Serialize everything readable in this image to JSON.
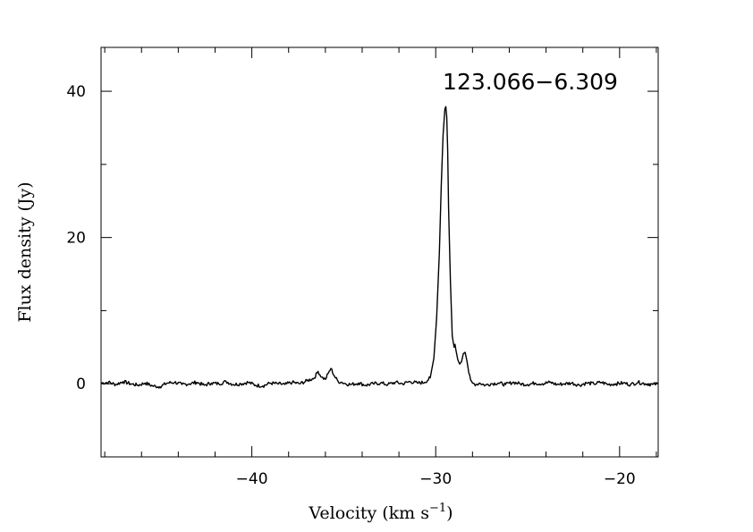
{
  "chart_data": {
    "type": "line",
    "title": "123.066−6.309",
    "xlabel": "Velocity (km s",
    "xlabel_sup": "−1",
    "xlabel_close": ")",
    "ylabel": "Flux density (Jy)",
    "xlim": [
      -48.2,
      -17.9
    ],
    "ylim": [
      -10,
      46
    ],
    "x_ticks_major": [
      -40,
      -30,
      -20
    ],
    "x_tick_labels": [
      "−40",
      "−30",
      "−20"
    ],
    "y_ticks_major": [
      0,
      20,
      40
    ],
    "y_tick_labels": [
      "0",
      "20",
      "40"
    ],
    "grid": false,
    "line_color": "#000000",
    "series": [
      {
        "x": [
          -48.2,
          -47.8,
          -47.4,
          -47.0,
          -46.6,
          -46.2,
          -45.8,
          -45.4,
          -45.0,
          -44.6,
          -44.2,
          -43.8,
          -43.4,
          -43.0,
          -42.6,
          -42.2,
          -41.8,
          -41.4,
          -41.0,
          -40.6,
          -40.2,
          -39.8,
          -39.4,
          -39.0,
          -38.6,
          -38.2,
          -37.8,
          -37.4,
          -37.0,
          -36.6,
          -36.4,
          -36.2,
          -36.0,
          -35.85,
          -35.7,
          -35.5,
          -35.3,
          -35.1,
          -34.9,
          -34.6,
          -34.2,
          -33.8,
          -33.4,
          -33.0,
          -32.6,
          -32.2,
          -31.8,
          -31.4,
          -31.0,
          -30.6,
          -30.3,
          -30.1,
          -29.95,
          -29.8,
          -29.7,
          -29.6,
          -29.5,
          -29.45,
          -29.4,
          -29.35,
          -29.3,
          -29.2,
          -29.1,
          -29.0,
          -28.95,
          -28.9,
          -28.8,
          -28.7,
          -28.6,
          -28.5,
          -28.4,
          -28.3,
          -28.2,
          -28.1,
          -28.0,
          -27.9,
          -27.8,
          -27.6,
          -27.3,
          -27.0,
          -26.6,
          -26.2,
          -25.8,
          -25.4,
          -25.0,
          -24.6,
          -24.2,
          -23.8,
          -23.4,
          -23.0,
          -22.6,
          -22.2,
          -21.8,
          -21.4,
          -21.0,
          -20.6,
          -20.2,
          -19.8,
          -19.4,
          -19.0,
          -18.6,
          -18.2,
          -17.9
        ],
        "values": [
          0.1,
          0.2,
          -0.1,
          0.3,
          0.0,
          -0.2,
          0.1,
          -0.3,
          -0.4,
          0.1,
          0.2,
          -0.1,
          0.0,
          0.2,
          -0.2,
          0.1,
          0.0,
          0.3,
          -0.1,
          0.0,
          0.2,
          -0.2,
          -0.3,
          0.1,
          0.0,
          -0.1,
          0.2,
          0.0,
          0.4,
          0.8,
          1.7,
          0.9,
          0.6,
          1.4,
          2.1,
          1.0,
          0.3,
          0.2,
          0.0,
          -0.1,
          0.1,
          -0.2,
          0.0,
          0.1,
          -0.1,
          0.2,
          0.0,
          0.3,
          0.1,
          0.2,
          0.8,
          3.5,
          9.0,
          18.0,
          27.0,
          34.0,
          37.6,
          37.9,
          36.5,
          32.0,
          24.0,
          14.0,
          6.5,
          5.0,
          5.4,
          4.6,
          3.3,
          2.7,
          3.0,
          4.1,
          4.3,
          3.1,
          1.5,
          0.5,
          0.1,
          0.0,
          -0.1,
          0.1,
          -0.2,
          0.0,
          0.1,
          -0.1,
          0.2,
          0.0,
          -0.1,
          0.1,
          0.0,
          0.2,
          -0.1,
          0.0,
          0.1,
          -0.2,
          0.1,
          0.0,
          0.2,
          -0.1,
          0.0,
          0.1,
          -0.1,
          0.2,
          0.0,
          -0.1,
          0.0
        ]
      }
    ]
  }
}
